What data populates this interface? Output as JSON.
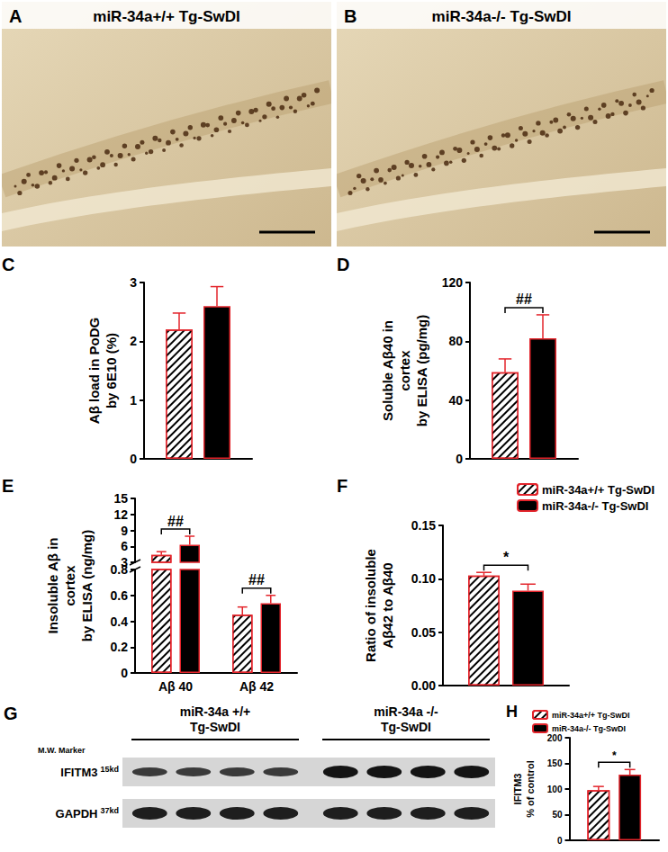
{
  "images": [
    {
      "panel": "A",
      "title": "miR-34a+/+ Tg-SwDI"
    },
    {
      "panel": "B",
      "title": "miR-34a-/- Tg-SwDI"
    }
  ],
  "blot": {
    "panel": "G",
    "marker_label": "M.W. Marker",
    "groups": [
      {
        "label": "miR-34a +/+\nTg-SwDI",
        "lanes": 4
      },
      {
        "label": "miR-34a -/-\nTg-SwDI",
        "lanes": 4
      }
    ],
    "rows": [
      {
        "protein": "IFITM3",
        "mw": "15kd"
      },
      {
        "protein": "GAPDH",
        "mw": "37kd"
      }
    ]
  },
  "chart_data": [
    {
      "panel": "C",
      "type": "bar",
      "y_label": "Aβ load in PoDG\nby 6E10 (%)",
      "categories": [
        null
      ],
      "series": [
        {
          "name": "miR-34a+/+ Tg-SwDI",
          "color": "#000000",
          "marker": "hatched",
          "values": [
            2.2
          ],
          "errors": [
            0.28
          ]
        },
        {
          "name": "miR-34a-/- Tg-SwDI",
          "color": "#000000",
          "marker": "solid",
          "values": [
            2.6
          ],
          "errors": [
            0.33
          ]
        }
      ],
      "ylim": [
        0,
        3
      ],
      "yticks": [
        0,
        1,
        2,
        3
      ],
      "grid": false,
      "tick_labels": "y"
    },
    {
      "panel": "D",
      "type": "bar",
      "y_label": "Soluble Aβ40 in\ncortex\nby ELISA (pg/mg)",
      "categories": [
        null
      ],
      "series": [
        {
          "name": "miR-34a+/+ Tg-SwDI",
          "color": "#000000",
          "marker": "hatched",
          "values": [
            59
          ],
          "errors": [
            9
          ]
        },
        {
          "name": "miR-34a-/- Tg-SwDI",
          "color": "#000000",
          "marker": "solid",
          "values": [
            82
          ],
          "errors": [
            16
          ]
        }
      ],
      "ylim": [
        0,
        120
      ],
      "yticks": [
        0,
        40,
        80,
        120
      ],
      "grid": false,
      "tick_labels": "y",
      "annotations": [
        {
          "text": "##",
          "category_index": 0
        }
      ]
    },
    {
      "panel": "E",
      "type": "bar",
      "y_label": "Insoluble Aβ in\ncortex\nby ELISA (ng/mg)",
      "categories": [
        "Aβ 40",
        "Aβ 42"
      ],
      "series": [
        {
          "name": "miR-34a+/+ Tg-SwDI",
          "color": "#000000",
          "marker": "hatched",
          "values": [
            4.4,
            0.45
          ],
          "errors": [
            0.6,
            0.06
          ]
        },
        {
          "name": "miR-34a-/- Tg-SwDI",
          "color": "#000000",
          "marker": "solid",
          "values": [
            6.3,
            0.54
          ],
          "errors": [
            1.6,
            0.06
          ]
        }
      ],
      "ylim": [
        0,
        15
      ],
      "yticks": [
        0,
        0.2,
        0.4,
        0.6,
        0.8,
        3,
        6,
        9,
        12,
        15
      ],
      "y_break": [
        0.8,
        3
      ],
      "grid": false,
      "annotations": [
        {
          "text": "##",
          "category_index": 0
        },
        {
          "text": "##",
          "category_index": 1
        }
      ]
    },
    {
      "panel": "F",
      "type": "bar",
      "y_label": "Ratio of insoluble\nAβ42 to Aβ40",
      "categories": [
        null
      ],
      "series": [
        {
          "name": "miR-34a+/+ Tg-SwDI",
          "color": "#000000",
          "marker": "hatched",
          "values": [
            0.103
          ],
          "errors": [
            0.003
          ]
        },
        {
          "name": "miR-34a-/- Tg-SwDI",
          "color": "#000000",
          "marker": "solid",
          "values": [
            0.089
          ],
          "errors": [
            0.006
          ]
        }
      ],
      "ylim": [
        0,
        0.15
      ],
      "yticks": [
        {
          "value": 0,
          "label": "0.00"
        },
        {
          "value": 0.05,
          "label": "0.05"
        },
        {
          "value": 0.1,
          "label": "0.10"
        },
        {
          "value": 0.15,
          "label": "0.15"
        }
      ],
      "grid": false,
      "tick_labels": "y",
      "legend": "top-right",
      "annotations": [
        {
          "text": "*",
          "category_index": 0
        }
      ]
    },
    {
      "panel": "H",
      "type": "bar",
      "y_label": "IFITM3\n% of control",
      "categories": [
        null
      ],
      "series": [
        {
          "name": "miR-34a+/+ Tg-SwDI",
          "color": "#000000",
          "marker": "hatched",
          "values": [
            98
          ],
          "errors": [
            7
          ]
        },
        {
          "name": "miR-34a-/- Tg-SwDI",
          "color": "#000000",
          "marker": "solid",
          "values": [
            128
          ],
          "errors": [
            10
          ]
        }
      ],
      "ylim": [
        0,
        200
      ],
      "yticks": [
        0,
        50,
        100,
        150,
        200
      ],
      "grid": false,
      "tick_labels": "y",
      "legend": "top-left",
      "annotations": [
        {
          "text": "*",
          "category_index": 0
        }
      ]
    }
  ]
}
